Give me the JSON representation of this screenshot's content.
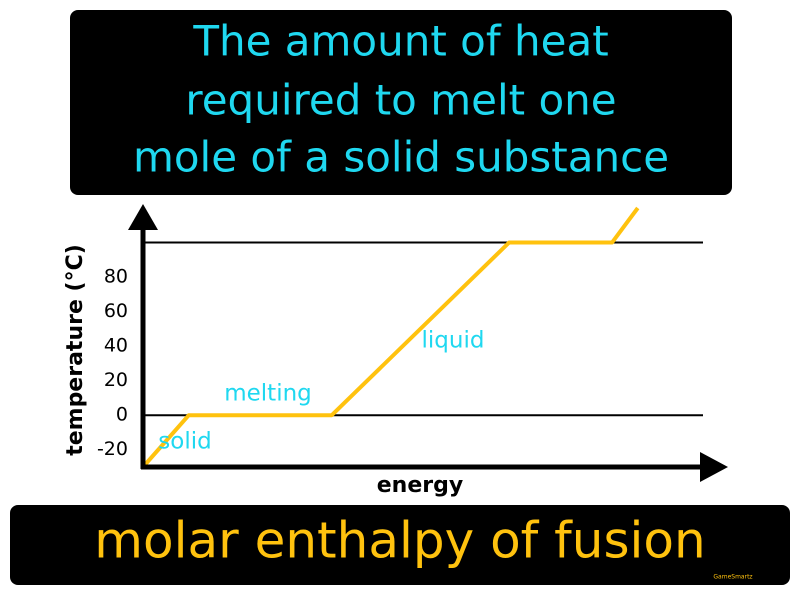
{
  "definition": [
    "The amount of heat",
    "required to melt one",
    "mole of a solid substance"
  ],
  "term": "molar enthalpy of fusion",
  "credit": "GameSmartz",
  "chart_data": {
    "type": "line",
    "x_label": "energy",
    "y_label": "temperature (°C)",
    "x": [
      0,
      8,
      33,
      64,
      82,
      86.5
    ],
    "series": [
      {
        "color": "#ffc20e",
        "values": [
          -30,
          0,
          0,
          100,
          100,
          120
        ]
      }
    ],
    "annotations": [
      "solid",
      "melting",
      "liquid"
    ],
    "annotation_color": "#1fd8f0",
    "reference_lines": [
      0,
      100
    ],
    "xlim": [
      0,
      100
    ],
    "ylim": [
      -30,
      120
    ],
    "yticks": [
      -20,
      0,
      20,
      40,
      60,
      80
    ]
  }
}
